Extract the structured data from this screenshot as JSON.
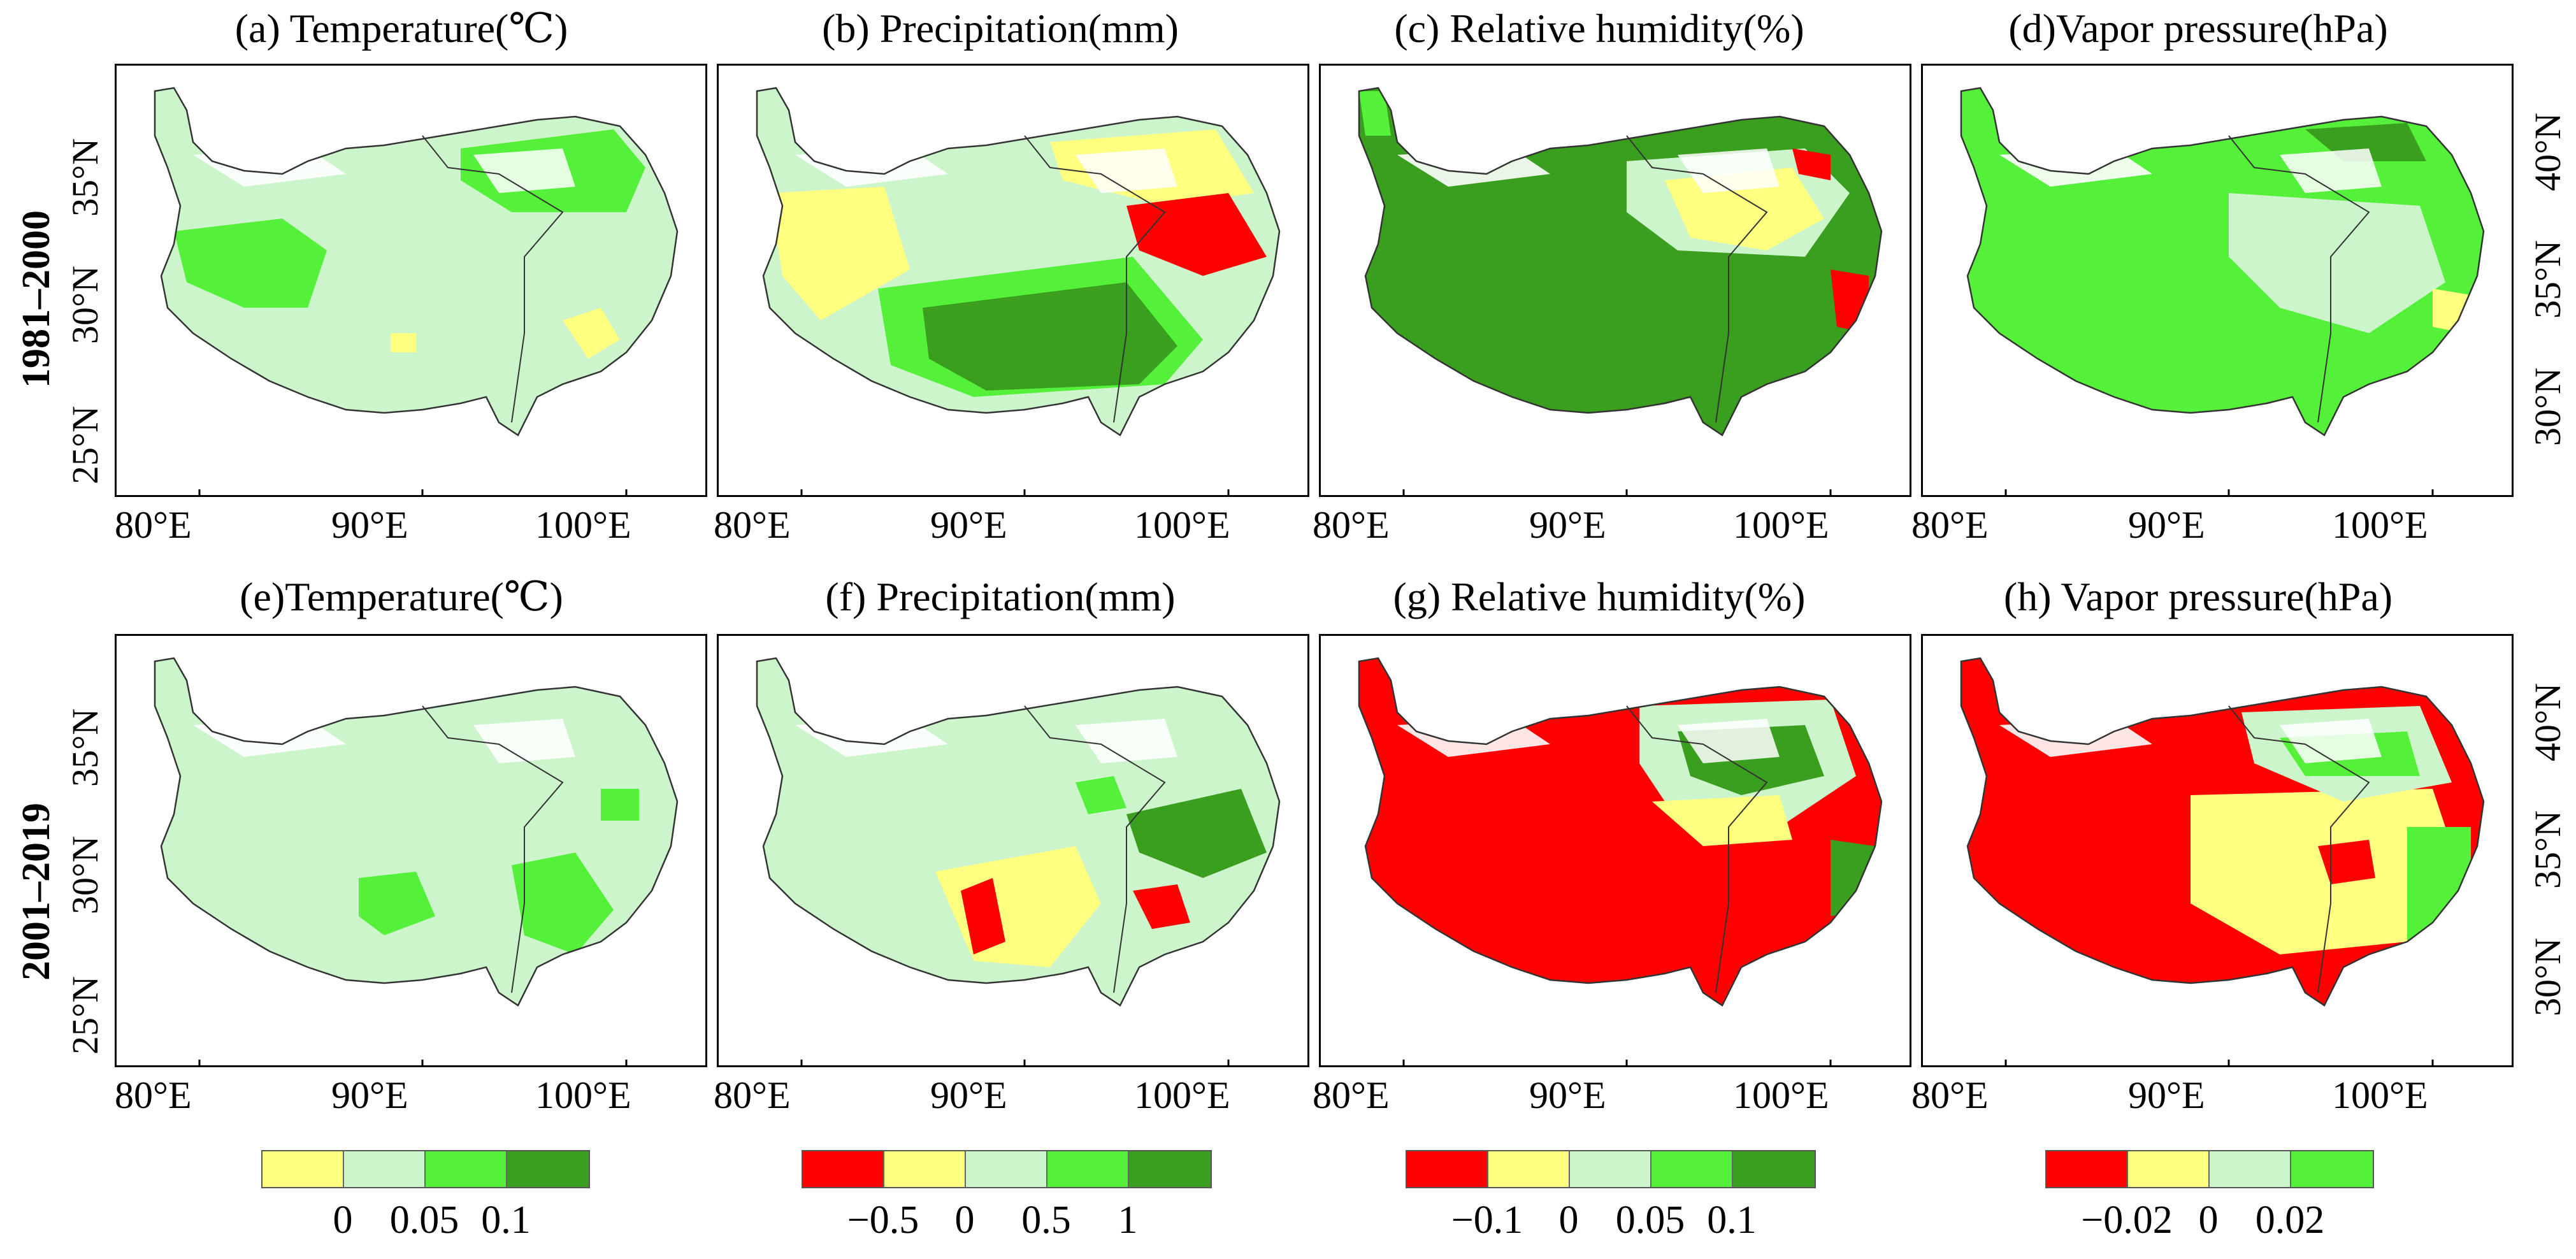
{
  "rows": [
    {
      "label": "1981–2000"
    },
    {
      "label": "2001–2019"
    }
  ],
  "panels": [
    {
      "id": "a",
      "title": "(a) Temperature(℃)",
      "scheme": "temp",
      "style": "a"
    },
    {
      "id": "b",
      "title": "(b) Precipitation(mm)",
      "scheme": "prec",
      "style": "b"
    },
    {
      "id": "c",
      "title": "(c) Relative humidity(%)",
      "scheme": "rh",
      "style": "c"
    },
    {
      "id": "d",
      "title": "(d)Vapor pressure(hPa)",
      "scheme": "vp",
      "style": "d"
    },
    {
      "id": "e",
      "title": "(e)Temperature(℃)",
      "scheme": "temp",
      "style": "e"
    },
    {
      "id": "f",
      "title": "(f) Precipitation(mm)",
      "scheme": "prec",
      "style": "f"
    },
    {
      "id": "g",
      "title": "(g) Relative humidity(%)",
      "scheme": "rh",
      "style": "g"
    },
    {
      "id": "h",
      "title": "(h) Vapor pressure(hPa)",
      "scheme": "vp",
      "style": "h"
    }
  ],
  "axes": {
    "x_ticks": [
      "80°E",
      "90°E",
      "100°E"
    ],
    "y_ticks_left": [
      "35°N",
      "30°N",
      "25°N"
    ],
    "y_ticks_right": [
      "40°N",
      "35°N",
      "30°N"
    ]
  },
  "legends": [
    {
      "name": "temperature",
      "colors": [
        "#ffff80",
        "#ccf5cc",
        "#55f03a",
        "#3a9e1e"
      ],
      "labels": [
        "0",
        "0.05",
        "0.1"
      ]
    },
    {
      "name": "precipitation",
      "colors": [
        "#ff0000",
        "#ffff80",
        "#ccf5cc",
        "#55f03a",
        "#3a9e1e"
      ],
      "labels": [
        "−0.5",
        "0",
        "0.5",
        "1"
      ]
    },
    {
      "name": "relative-humidity",
      "colors": [
        "#ff0000",
        "#ffff80",
        "#ccf5cc",
        "#55f03a",
        "#3a9e1e"
      ],
      "labels": [
        "−0.1",
        "0",
        "0.05",
        "0.1"
      ]
    },
    {
      "name": "vapor-pressure",
      "colors": [
        "#ff0000",
        "#ffff80",
        "#ccf5cc",
        "#55f03a"
      ],
      "labels": [
        "−0.02",
        "0",
        "0.02"
      ]
    }
  ],
  "colors": {
    "red": "#ff0000",
    "yellow": "#ffff80",
    "pale": "#ccf5cc",
    "green": "#55f03a",
    "dark": "#3a9e1e"
  }
}
